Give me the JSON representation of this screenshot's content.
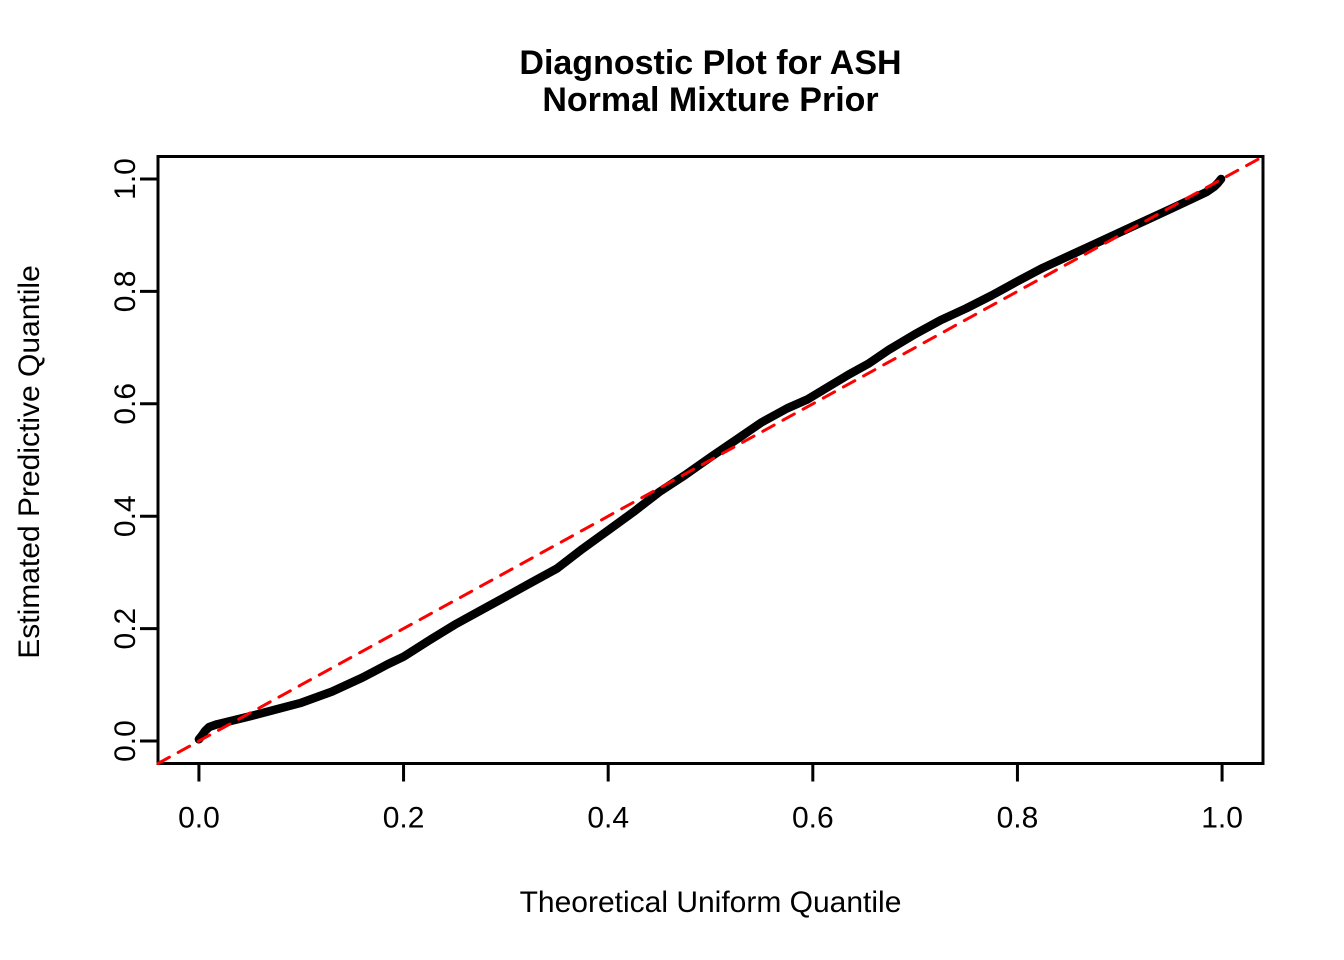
{
  "figure": {
    "background": "#ffffff",
    "title_line1": "Diagnostic Plot for ASH",
    "title_line2": "Normal Mixture Prior"
  },
  "chart_data": {
    "type": "line",
    "title": "Diagnostic Plot for ASH\nNormal Mixture Prior",
    "xlabel": "Theoretical Uniform Quantile",
    "ylabel": "Estimated Predictive Quantile",
    "xlim": [
      -0.04,
      1.04
    ],
    "ylim": [
      -0.04,
      1.04
    ],
    "xticks": [
      0.0,
      0.2,
      0.4,
      0.6,
      0.8,
      1.0
    ],
    "yticks": [
      0.0,
      0.2,
      0.4,
      0.6,
      0.8,
      1.0
    ],
    "tick_label_format": "one_decimal",
    "grid": false,
    "legend": "none",
    "frame_color": "#000000",
    "series": [
      {
        "name": "estimated-predictive-quantiles",
        "type": "line",
        "color": "#000000",
        "line_width": 8.5,
        "dash": null,
        "points": [
          [
            0.0,
            0.003
          ],
          [
            0.003,
            0.01
          ],
          [
            0.006,
            0.018
          ],
          [
            0.01,
            0.025
          ],
          [
            0.018,
            0.03
          ],
          [
            0.03,
            0.035
          ],
          [
            0.05,
            0.044
          ],
          [
            0.075,
            0.056
          ],
          [
            0.1,
            0.068
          ],
          [
            0.13,
            0.088
          ],
          [
            0.16,
            0.113
          ],
          [
            0.185,
            0.137
          ],
          [
            0.2,
            0.15
          ],
          [
            0.225,
            0.179
          ],
          [
            0.25,
            0.207
          ],
          [
            0.275,
            0.232
          ],
          [
            0.3,
            0.257
          ],
          [
            0.325,
            0.282
          ],
          [
            0.35,
            0.307
          ],
          [
            0.375,
            0.342
          ],
          [
            0.4,
            0.375
          ],
          [
            0.425,
            0.408
          ],
          [
            0.45,
            0.443
          ],
          [
            0.475,
            0.473
          ],
          [
            0.5,
            0.505
          ],
          [
            0.525,
            0.536
          ],
          [
            0.55,
            0.567
          ],
          [
            0.575,
            0.592
          ],
          [
            0.595,
            0.608
          ],
          [
            0.615,
            0.63
          ],
          [
            0.635,
            0.652
          ],
          [
            0.655,
            0.672
          ],
          [
            0.675,
            0.697
          ],
          [
            0.7,
            0.724
          ],
          [
            0.725,
            0.749
          ],
          [
            0.75,
            0.77
          ],
          [
            0.775,
            0.793
          ],
          [
            0.8,
            0.818
          ],
          [
            0.825,
            0.842
          ],
          [
            0.85,
            0.863
          ],
          [
            0.875,
            0.884
          ],
          [
            0.9,
            0.905
          ],
          [
            0.925,
            0.926
          ],
          [
            0.95,
            0.947
          ],
          [
            0.97,
            0.964
          ],
          [
            0.985,
            0.977
          ],
          [
            0.992,
            0.986
          ],
          [
            0.996,
            0.993
          ],
          [
            0.999,
            1.0
          ]
        ]
      },
      {
        "name": "reference-diagonal",
        "type": "line",
        "color": "#FF0000",
        "line_width": 3,
        "dash": [
          13,
          10
        ],
        "points": [
          [
            -0.04,
            -0.04
          ],
          [
            1.04,
            1.04
          ]
        ]
      }
    ]
  }
}
